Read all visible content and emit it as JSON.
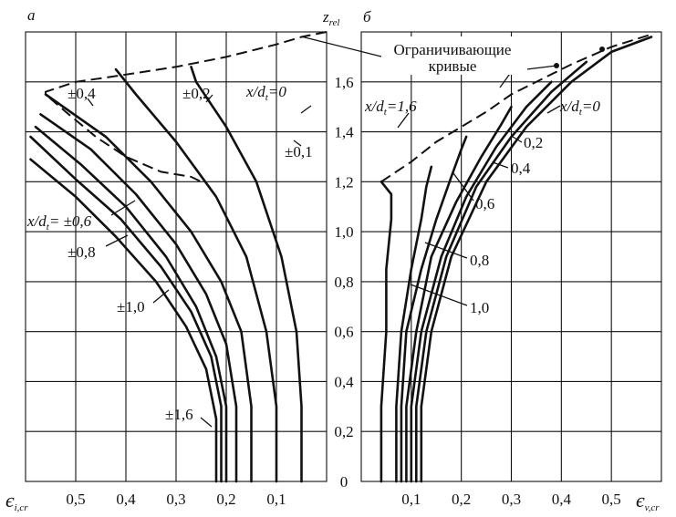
{
  "chart_data": [
    {
      "type": "line",
      "panel_letter": "а",
      "xlabel": "є",
      "xlabel_sub": "i,cr",
      "xlim": [
        0.6,
        0.0
      ],
      "x_ticks": [
        "0,5",
        "0,4",
        "0,3",
        "0,2",
        "0,1"
      ],
      "ylim": [
        0,
        1.8
      ],
      "series": [
        {
          "name": "±0,1",
          "points": [
            [
              0.05,
              0
            ],
            [
              0.05,
              0.3
            ],
            [
              0.06,
              0.6
            ],
            [
              0.09,
              0.9
            ],
            [
              0.14,
              1.2
            ],
            [
              0.2,
              1.42
            ],
            [
              0.26,
              1.6
            ],
            [
              0.27,
              1.66
            ]
          ]
        },
        {
          "name": "±0,2",
          "points": [
            [
              0.1,
              0
            ],
            [
              0.1,
              0.3
            ],
            [
              0.12,
              0.6
            ],
            [
              0.16,
              0.9
            ],
            [
              0.22,
              1.14
            ],
            [
              0.3,
              1.36
            ],
            [
              0.38,
              1.55
            ],
            [
              0.42,
              1.65
            ]
          ]
        },
        {
          "name": "±0,4",
          "points": [
            [
              0.15,
              0
            ],
            [
              0.15,
              0.3
            ],
            [
              0.17,
              0.6
            ],
            [
              0.21,
              0.8
            ],
            [
              0.27,
              1.0
            ],
            [
              0.35,
              1.2
            ],
            [
              0.44,
              1.38
            ],
            [
              0.56,
              1.55
            ]
          ]
        },
        {
          "name": "±0,6",
          "points": [
            [
              0.18,
              0
            ],
            [
              0.18,
              0.3
            ],
            [
              0.2,
              0.55
            ],
            [
              0.24,
              0.75
            ],
            [
              0.3,
              0.95
            ],
            [
              0.38,
              1.15
            ],
            [
              0.47,
              1.33
            ],
            [
              0.57,
              1.47
            ]
          ]
        },
        {
          "name": "±0,8",
          "points": [
            [
              0.2,
              0
            ],
            [
              0.2,
              0.3
            ],
            [
              0.22,
              0.5
            ],
            [
              0.26,
              0.7
            ],
            [
              0.32,
              0.9
            ],
            [
              0.4,
              1.1
            ],
            [
              0.49,
              1.27
            ],
            [
              0.58,
              1.42
            ]
          ]
        },
        {
          "name": "±1,0",
          "points": [
            [
              0.21,
              0
            ],
            [
              0.21,
              0.3
            ],
            [
              0.23,
              0.5
            ],
            [
              0.27,
              0.68
            ],
            [
              0.33,
              0.86
            ],
            [
              0.41,
              1.05
            ],
            [
              0.5,
              1.21
            ],
            [
              0.59,
              1.38
            ]
          ]
        },
        {
          "name": "±1,6",
          "points": [
            [
              0.22,
              0
            ],
            [
              0.22,
              0.25
            ],
            [
              0.24,
              0.45
            ],
            [
              0.28,
              0.62
            ],
            [
              0.34,
              0.8
            ],
            [
              0.42,
              0.98
            ],
            [
              0.5,
              1.14
            ],
            [
              0.59,
              1.29
            ]
          ]
        }
      ],
      "limiting_curve": [
        [
          0.0,
          1.8
        ],
        [
          0.05,
          1.78
        ],
        [
          0.1,
          1.75
        ],
        [
          0.2,
          1.7
        ],
        [
          0.3,
          1.66
        ],
        [
          0.43,
          1.62
        ],
        [
          0.5,
          1.6
        ],
        [
          0.56,
          1.56
        ],
        [
          0.56,
          1.55
        ],
        [
          0.52,
          1.48
        ],
        [
          0.46,
          1.38
        ],
        [
          0.4,
          1.3
        ],
        [
          0.33,
          1.24
        ],
        [
          0.27,
          1.22
        ],
        [
          0.25,
          1.2
        ]
      ],
      "curve_labels": [
        {
          "text": "x/d",
          "sub": "t",
          "suffix": "=0"
        },
        {
          "text": "±0,1"
        },
        {
          "text": "±0,2"
        },
        {
          "text": "±0,4"
        },
        {
          "text": "x/d",
          "sub": "t",
          "suffix": "= ±0,6"
        },
        {
          "text": "±0,8"
        },
        {
          "text": "±1,0"
        },
        {
          "text": "±1,6"
        }
      ]
    },
    {
      "type": "line",
      "panel_letter": "б",
      "xlabel": "є",
      "xlabel_sub": "v,cr",
      "xlim": [
        0.0,
        0.6
      ],
      "x_ticks": [
        "0,1",
        "0,2",
        "0,3",
        "0,4",
        "0,5"
      ],
      "ylim": [
        0,
        1.8
      ],
      "series": [
        {
          "name": "0",
          "points": [
            [
              0.12,
              0
            ],
            [
              0.12,
              0.3
            ],
            [
              0.14,
              0.6
            ],
            [
              0.18,
              0.9
            ],
            [
              0.25,
              1.2
            ],
            [
              0.33,
              1.42
            ],
            [
              0.42,
              1.6
            ],
            [
              0.5,
              1.72
            ],
            [
              0.58,
              1.78
            ]
          ]
        },
        {
          "name": "0,2",
          "points": [
            [
              0.11,
              0
            ],
            [
              0.11,
              0.3
            ],
            [
              0.13,
              0.6
            ],
            [
              0.17,
              0.9
            ],
            [
              0.23,
              1.18
            ],
            [
              0.3,
              1.38
            ],
            [
              0.38,
              1.56
            ],
            [
              0.45,
              1.68
            ]
          ]
        },
        {
          "name": "0,4",
          "points": [
            [
              0.1,
              0
            ],
            [
              0.1,
              0.3
            ],
            [
              0.12,
              0.6
            ],
            [
              0.16,
              0.9
            ],
            [
              0.21,
              1.14
            ],
            [
              0.27,
              1.34
            ],
            [
              0.33,
              1.5
            ],
            [
              0.38,
              1.6
            ]
          ]
        },
        {
          "name": "0,6",
          "points": [
            [
              0.09,
              0
            ],
            [
              0.09,
              0.3
            ],
            [
              0.11,
              0.6
            ],
            [
              0.14,
              0.9
            ],
            [
              0.19,
              1.12
            ],
            [
              0.24,
              1.3
            ],
            [
              0.28,
              1.43
            ],
            [
              0.3,
              1.5
            ]
          ]
        },
        {
          "name": "0,8",
          "points": [
            [
              0.08,
              0
            ],
            [
              0.08,
              0.3
            ],
            [
              0.09,
              0.6
            ],
            [
              0.12,
              0.85
            ],
            [
              0.15,
              1.05
            ],
            [
              0.18,
              1.22
            ],
            [
              0.2,
              1.33
            ],
            [
              0.21,
              1.38
            ]
          ]
        },
        {
          "name": "1,0",
          "points": [
            [
              0.07,
              0
            ],
            [
              0.07,
              0.3
            ],
            [
              0.08,
              0.6
            ],
            [
              0.1,
              0.85
            ],
            [
              0.12,
              1.05
            ],
            [
              0.13,
              1.18
            ],
            [
              0.14,
              1.26
            ]
          ]
        },
        {
          "name": "1,6",
          "points": [
            [
              0.04,
              0
            ],
            [
              0.04,
              0.3
            ],
            [
              0.05,
              0.6
            ],
            [
              0.05,
              0.85
            ],
            [
              0.06,
              1.05
            ],
            [
              0.06,
              1.15
            ],
            [
              0.04,
              1.2
            ]
          ]
        }
      ],
      "limiting_curve": [
        [
          0.04,
          1.2
        ],
        [
          0.1,
          1.28
        ],
        [
          0.15,
          1.36
        ],
        [
          0.2,
          1.42
        ],
        [
          0.25,
          1.48
        ],
        [
          0.3,
          1.55
        ],
        [
          0.36,
          1.61
        ],
        [
          0.42,
          1.67
        ],
        [
          0.5,
          1.74
        ],
        [
          0.58,
          1.79
        ]
      ],
      "curve_labels": [
        {
          "text": "x/d",
          "sub": "t",
          "suffix": "=1,6"
        },
        {
          "text": "x/d",
          "sub": "t",
          "suffix": "=0"
        },
        {
          "text": "0,2"
        },
        {
          "text": "0,4"
        },
        {
          "text": "0,6"
        },
        {
          "text": "0,8"
        },
        {
          "text": "1,0"
        }
      ]
    }
  ],
  "shared_axis": {
    "label": "z",
    "label_sub": "rel",
    "ticks": [
      "0",
      "0,2",
      "0,4",
      "0,6",
      "0,8",
      "1,0",
      "1,2",
      "1,4",
      "1,6"
    ]
  },
  "annotation": {
    "line1": "Ограничивающие",
    "line2": "кривые"
  }
}
